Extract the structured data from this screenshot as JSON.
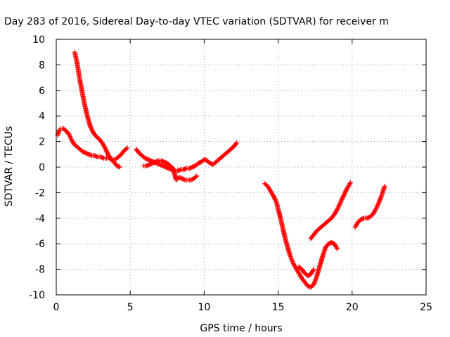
{
  "chart_data": {
    "type": "scatter",
    "title": "Day 283 of 2016, Sidereal Day-to-day VTEC variation (SDTVAR) for receiver m",
    "xlabel": "GPS time / hours",
    "ylabel": "SDTVAR / TECUs",
    "xlim": [
      0,
      25
    ],
    "ylim": [
      -10,
      10
    ],
    "x_ticks": [
      0,
      5,
      10,
      15,
      20,
      25
    ],
    "y_ticks": [
      -10,
      -8,
      -6,
      -4,
      -2,
      0,
      2,
      4,
      6,
      8,
      10
    ],
    "x_tick_labels": [
      "0",
      "5",
      "10",
      "15",
      "20",
      "25"
    ],
    "y_tick_labels": [
      "-10",
      "-8",
      "-6",
      "-4",
      "-2",
      "0",
      "2",
      "4",
      "6",
      "8",
      "10"
    ],
    "grid": true,
    "grid_style": "dotted",
    "marker": "plus",
    "color": "#ff0000",
    "series": [
      {
        "x": [
          0.1,
          0.2,
          0.3,
          0.5,
          0.7,
          0.9,
          1.0,
          1.2,
          1.4,
          1.6,
          1.8,
          2.0,
          2.2,
          2.4,
          2.6,
          2.8,
          3.0,
          3.2,
          3.4,
          3.6,
          3.8,
          4.0,
          4.2,
          4.4,
          4.6,
          4.8
        ],
        "y": [
          2.5,
          2.9,
          3.0,
          3.0,
          2.8,
          2.5,
          2.2,
          1.8,
          1.6,
          1.4,
          1.2,
          1.1,
          1.0,
          0.9,
          0.9,
          0.8,
          0.8,
          0.7,
          0.7,
          0.7,
          0.6,
          0.6,
          0.8,
          1.0,
          1.3,
          1.5
        ]
      },
      {
        "x": [
          1.25,
          1.4,
          1.5,
          1.6,
          1.7,
          1.8,
          1.9,
          2.0,
          2.1,
          2.2,
          2.3,
          2.5,
          2.7,
          2.9,
          3.1,
          3.3,
          3.5,
          3.7,
          3.9,
          4.1,
          4.3
        ],
        "y": [
          9.0,
          8.2,
          7.5,
          6.8,
          6.2,
          5.6,
          5.0,
          4.5,
          4.0,
          3.6,
          3.2,
          2.7,
          2.4,
          2.2,
          1.9,
          1.5,
          1.0,
          0.6,
          0.4,
          0.1,
          0.0
        ]
      },
      {
        "x": [
          5.4,
          5.6,
          5.8,
          6.0,
          6.2,
          6.4,
          6.6,
          6.8,
          7.0,
          7.2,
          7.4,
          7.6,
          7.8,
          8.0,
          8.2,
          8.4,
          8.6,
          8.8,
          9.0,
          9.2,
          9.4,
          9.6,
          9.8,
          10.0,
          10.2,
          10.4,
          10.6,
          10.8,
          11.0,
          11.2,
          11.4,
          11.6,
          11.8,
          12.0,
          12.2
        ],
        "y": [
          1.4,
          1.1,
          0.9,
          0.7,
          0.6,
          0.5,
          0.4,
          0.3,
          0.2,
          0.1,
          0.0,
          -0.1,
          -0.2,
          -0.3,
          -0.3,
          -0.2,
          -0.2,
          -0.1,
          -0.1,
          0.0,
          0.1,
          0.3,
          0.4,
          0.6,
          0.5,
          0.3,
          0.2,
          0.4,
          0.6,
          0.8,
          1.0,
          1.2,
          1.4,
          1.6,
          1.9
        ]
      },
      {
        "x": [
          5.9,
          6.1,
          6.3,
          6.5,
          6.7,
          6.9,
          7.1,
          7.3,
          7.5,
          7.7,
          7.9,
          8.1,
          8.3,
          8.5,
          8.7,
          8.9,
          9.1,
          9.3,
          9.5
        ],
        "y": [
          0.1,
          0.1,
          0.2,
          0.3,
          0.4,
          0.5,
          0.5,
          0.4,
          0.3,
          0.1,
          -0.1,
          -1.0,
          -0.8,
          -0.9,
          -1.0,
          -1.0,
          -1.0,
          -0.9,
          -0.7
        ]
      },
      {
        "x": [
          14.1,
          14.3,
          14.5,
          14.7,
          14.9,
          15.0,
          15.1,
          15.2,
          15.3,
          15.4,
          15.5,
          15.6,
          15.7,
          15.8,
          15.9,
          16.0,
          16.2,
          16.4,
          16.6,
          16.8,
          17.0,
          17.2,
          17.4,
          17.6,
          17.8,
          18.0,
          18.2,
          18.4,
          18.6,
          18.8,
          19.0
        ],
        "y": [
          -1.3,
          -1.5,
          -1.9,
          -2.3,
          -2.8,
          -3.3,
          -3.7,
          -4.2,
          -4.7,
          -5.2,
          -5.7,
          -6.1,
          -6.5,
          -6.9,
          -7.2,
          -7.5,
          -7.9,
          -8.3,
          -8.7,
          -9.0,
          -9.3,
          -9.4,
          -9.2,
          -8.6,
          -7.8,
          -7.0,
          -6.3,
          -6.0,
          -5.9,
          -6.0,
          -6.4
        ]
      },
      {
        "x": [
          16.4,
          16.6,
          16.8,
          17.0,
          17.2,
          17.4
        ],
        "y": [
          -7.8,
          -8.0,
          -8.3,
          -8.5,
          -8.4,
          -8.0
        ]
      },
      {
        "x": [
          17.2,
          17.4,
          17.6,
          17.8,
          18.0,
          18.2,
          18.4,
          18.6,
          18.8,
          19.0,
          19.2,
          19.4,
          19.6,
          19.8,
          19.9
        ],
        "y": [
          -5.6,
          -5.3,
          -5.0,
          -4.8,
          -4.6,
          -4.4,
          -4.2,
          -4.0,
          -3.7,
          -3.3,
          -2.8,
          -2.3,
          -1.8,
          -1.4,
          -1.2
        ]
      },
      {
        "x": [
          20.2,
          20.4,
          20.6,
          20.8,
          21.0,
          21.2,
          21.4,
          21.6,
          21.8,
          22.0,
          22.2
        ],
        "y": [
          -4.7,
          -4.3,
          -4.1,
          -4.0,
          -4.0,
          -3.9,
          -3.7,
          -3.3,
          -2.8,
          -2.2,
          -1.5
        ]
      }
    ]
  }
}
